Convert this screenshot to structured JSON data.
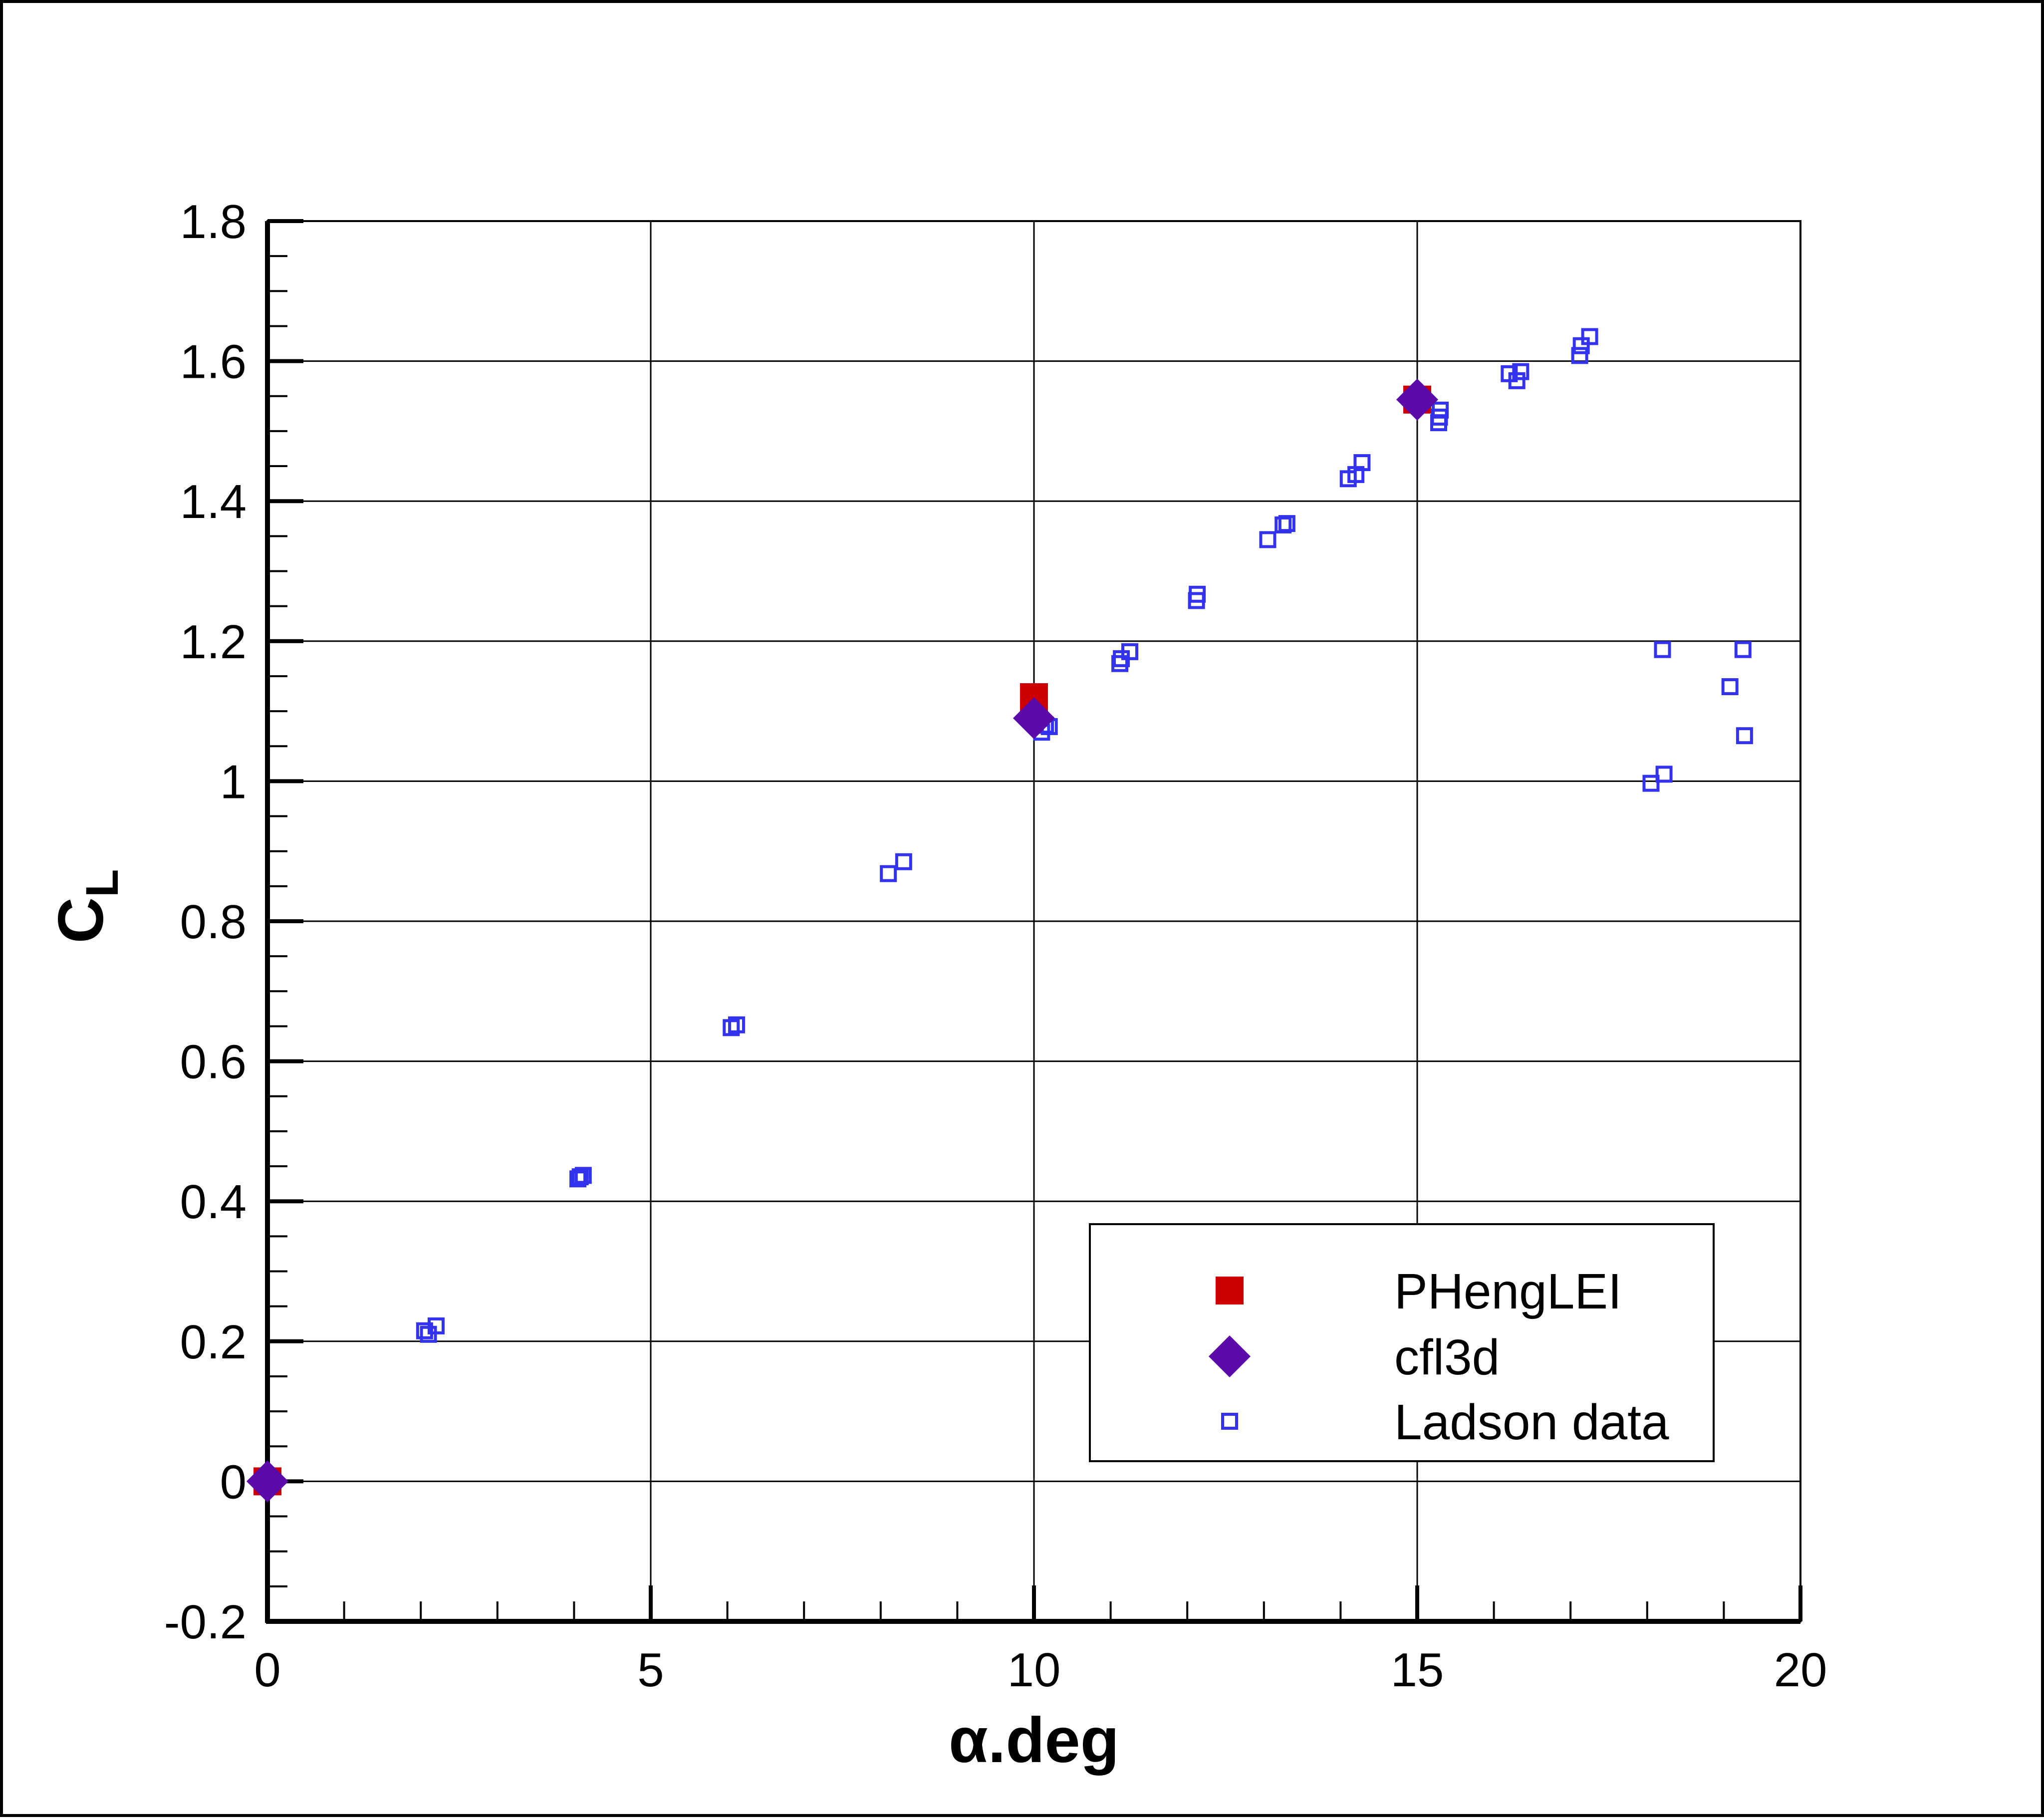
{
  "chart_data": {
    "type": "scatter",
    "title": "",
    "xlabel": "α.deg",
    "ylabel": "C",
    "ylabel_subscript": "L",
    "xlim": [
      0,
      20
    ],
    "ylim": [
      -0.2,
      1.8
    ],
    "x_ticks": [
      0,
      5,
      10,
      15,
      20
    ],
    "x_tick_labels": [
      "0",
      "5",
      "10",
      "15",
      "20"
    ],
    "y_ticks": [
      -0.2,
      0,
      0.2,
      0.4,
      0.6,
      0.8,
      1,
      1.2,
      1.4,
      1.6,
      1.8
    ],
    "y_tick_labels": [
      "-0.2",
      "0",
      "0.2",
      "0.4",
      "0.6",
      "0.8",
      "1",
      "1.2",
      "1.4",
      "1.6",
      "1.8"
    ],
    "grid": true,
    "legend_position": "bottom-right",
    "series": [
      {
        "name": "PHengLEI",
        "marker": "filled-square",
        "color": "#cc0000",
        "points": [
          [
            0,
            0
          ],
          [
            10,
            1.12
          ],
          [
            15,
            1.545
          ]
        ]
      },
      {
        "name": "cfl3d",
        "marker": "filled-diamond",
        "color": "#5a0aa8",
        "points": [
          [
            0,
            0
          ],
          [
            10,
            1.09
          ],
          [
            15,
            1.545
          ]
        ]
      },
      {
        "name": "Ladson data",
        "marker": "open-square",
        "color": "#3333ee",
        "points": [
          [
            2.05,
            0.215
          ],
          [
            2.1,
            0.21
          ],
          [
            2.2,
            0.222
          ],
          [
            4.05,
            0.432
          ],
          [
            4.08,
            0.435
          ],
          [
            4.12,
            0.437
          ],
          [
            6.05,
            0.648
          ],
          [
            6.12,
            0.652
          ],
          [
            8.1,
            0.868
          ],
          [
            8.3,
            0.885
          ],
          [
            10.1,
            1.07
          ],
          [
            10.15,
            1.08
          ],
          [
            10.2,
            1.078
          ],
          [
            11.12,
            1.168
          ],
          [
            11.14,
            1.175
          ],
          [
            11.25,
            1.185
          ],
          [
            12.12,
            1.258
          ],
          [
            12.13,
            1.267
          ],
          [
            13.05,
            1.345
          ],
          [
            13.25,
            1.366
          ],
          [
            13.3,
            1.368
          ],
          [
            14.1,
            1.432
          ],
          [
            14.2,
            1.438
          ],
          [
            14.28,
            1.455
          ],
          [
            15.28,
            1.512
          ],
          [
            15.29,
            1.52
          ],
          [
            15.3,
            1.53
          ],
          [
            16.2,
            1.582
          ],
          [
            16.3,
            1.572
          ],
          [
            16.35,
            1.585
          ],
          [
            17.12,
            1.608
          ],
          [
            17.14,
            1.622
          ],
          [
            17.25,
            1.635
          ],
          [
            18.05,
            0.997
          ],
          [
            18.2,
            1.188
          ],
          [
            18.22,
            1.01
          ],
          [
            19.08,
            1.135
          ],
          [
            19.25,
            1.188
          ],
          [
            19.27,
            1.065
          ]
        ]
      }
    ]
  }
}
